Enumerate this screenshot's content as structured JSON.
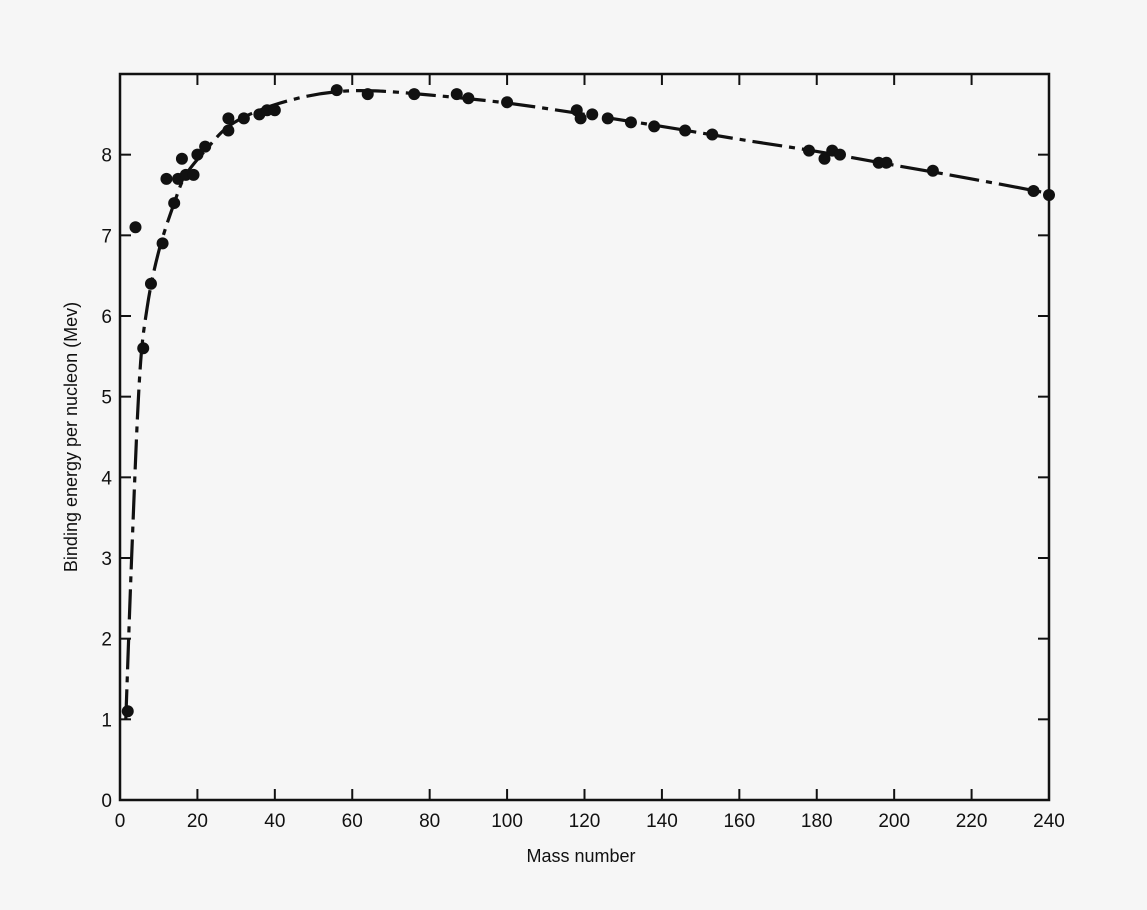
{
  "chart_data": {
    "type": "scatter",
    "title": "",
    "xlabel": "Mass number",
    "ylabel": "Binding energy per nucleon (Mev)",
    "xlim": [
      0,
      240
    ],
    "ylim": [
      0,
      9
    ],
    "x_ticks": [
      0,
      20,
      40,
      60,
      80,
      100,
      120,
      140,
      160,
      180,
      200,
      220,
      240
    ],
    "y_ticks": [
      0,
      1,
      2,
      3,
      4,
      5,
      6,
      7,
      8
    ],
    "grid": false,
    "legend": "none",
    "series": [
      {
        "points": [
          [
            2,
            1.1
          ],
          [
            6,
            5.6
          ],
          [
            4,
            7.1
          ],
          [
            8,
            6.4
          ],
          [
            11,
            6.9
          ],
          [
            12,
            7.7
          ],
          [
            14,
            7.4
          ],
          [
            15,
            7.7
          ],
          [
            16,
            7.95
          ],
          [
            17,
            7.75
          ],
          [
            19,
            7.75
          ],
          [
            20,
            8.0
          ],
          [
            22,
            8.1
          ],
          [
            28,
            8.3
          ],
          [
            28,
            8.45
          ],
          [
            32,
            8.45
          ],
          [
            36,
            8.5
          ],
          [
            38,
            8.55
          ],
          [
            40,
            8.55
          ],
          [
            56,
            8.8
          ],
          [
            64,
            8.75
          ],
          [
            76,
            8.75
          ],
          [
            87,
            8.75
          ],
          [
            90,
            8.7
          ],
          [
            100,
            8.65
          ],
          [
            118,
            8.55
          ],
          [
            119,
            8.45
          ],
          [
            122,
            8.5
          ],
          [
            126,
            8.45
          ],
          [
            132,
            8.4
          ],
          [
            138,
            8.35
          ],
          [
            146,
            8.3
          ],
          [
            153,
            8.25
          ],
          [
            178,
            8.05
          ],
          [
            182,
            7.95
          ],
          [
            184,
            8.05
          ],
          [
            186,
            8.0
          ],
          [
            196,
            7.9
          ],
          [
            198,
            7.9
          ],
          [
            210,
            7.8
          ],
          [
            236,
            7.55
          ],
          [
            240,
            7.5
          ]
        ]
      }
    ],
    "curve": [
      [
        1.5,
        1.0
      ],
      [
        3,
        3.0
      ],
      [
        5,
        5.2
      ],
      [
        7,
        6.1
      ],
      [
        10,
        6.8
      ],
      [
        14,
        7.4
      ],
      [
        17,
        7.75
      ],
      [
        22,
        8.05
      ],
      [
        28,
        8.35
      ],
      [
        36,
        8.55
      ],
      [
        46,
        8.7
      ],
      [
        56,
        8.78
      ],
      [
        66,
        8.79
      ],
      [
        80,
        8.74
      ],
      [
        100,
        8.64
      ],
      [
        120,
        8.5
      ],
      [
        140,
        8.35
      ],
      [
        160,
        8.19
      ],
      [
        180,
        8.04
      ],
      [
        200,
        7.87
      ],
      [
        220,
        7.7
      ],
      [
        240,
        7.52
      ]
    ],
    "colors": {
      "ink": "#111111",
      "background": "#f6f6f6"
    }
  }
}
